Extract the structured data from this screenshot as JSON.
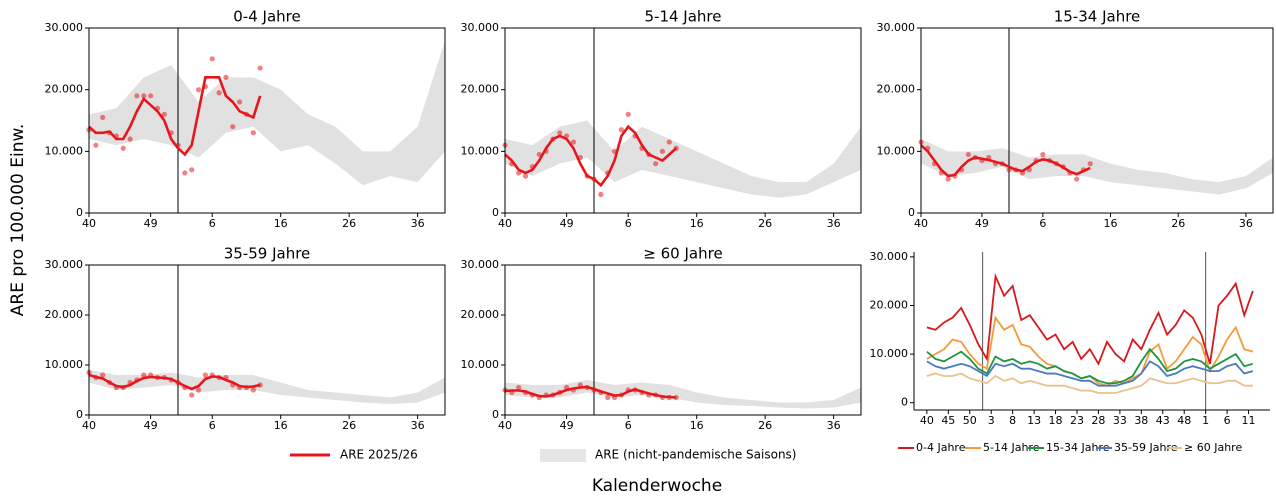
{
  "figure": {
    "ylabel": "ARE pro 100.000 Einw.",
    "xlabel": "Kalenderwoche"
  },
  "legend": {
    "line": {
      "name": "ARE 2025/26",
      "color": "#e8161b"
    },
    "band": {
      "name": "ARE (nicht-pandemische Saisons)",
      "color": "#dcdcdc"
    }
  },
  "chart_data": [
    {
      "type": "band_line",
      "title": "0-4 Jahre",
      "x": [
        0,
        1,
        2,
        3,
        4,
        5,
        6,
        7,
        8,
        9,
        10,
        11,
        12,
        13,
        14,
        15,
        16,
        17,
        18,
        19,
        20,
        21,
        22,
        23,
        24,
        25
      ],
      "values": [
        14000,
        13000,
        13000,
        13200,
        12000,
        12000,
        14000,
        16500,
        18500,
        17500,
        16500,
        15000,
        12000,
        10500,
        9500,
        11000,
        16500,
        22000,
        22000,
        22000,
        19000,
        18000,
        16500,
        16000,
        15500,
        19000
      ],
      "points": [
        13500,
        11000,
        15500,
        13000,
        12500,
        10500,
        12000,
        19000,
        19000,
        19000,
        17000,
        16000,
        13000,
        11000,
        6500,
        7000,
        20000,
        20500,
        25000,
        19500,
        22000,
        14000,
        18000,
        16000,
        13000,
        23500
      ],
      "band_x": [
        0,
        4,
        8,
        12,
        16,
        20,
        24,
        28,
        32,
        36,
        40,
        44,
        48,
        52
      ],
      "band_lower": [
        12000,
        11000,
        12000,
        11000,
        9000,
        13000,
        14000,
        10000,
        11000,
        8000,
        4500,
        6000,
        5000,
        10000
      ],
      "band_upper": [
        16000,
        17000,
        22000,
        24000,
        18000,
        22000,
        22000,
        20000,
        16000,
        14000,
        10000,
        10000,
        14000,
        28000
      ],
      "vline": 13,
      "xlim": [
        0,
        52
      ],
      "xticks": [
        {
          "value": 0,
          "label": "40"
        },
        {
          "value": 9,
          "label": "49"
        },
        {
          "value": 18,
          "label": "6"
        },
        {
          "value": 28,
          "label": "16"
        },
        {
          "value": 38,
          "label": "26"
        },
        {
          "value": 48,
          "label": "36"
        }
      ],
      "ylim": [
        0,
        30000
      ],
      "yticks": [
        0,
        {
          "value": 10000,
          "label": "10.000"
        },
        {
          "value": 20000,
          "label": "20.000"
        },
        {
          "value": 30000,
          "label": "30.000"
        }
      ]
    },
    {
      "type": "band_line",
      "title": "5-14 Jahre",
      "x": [
        0,
        1,
        2,
        3,
        4,
        5,
        6,
        7,
        8,
        9,
        10,
        11,
        12,
        13,
        14,
        15,
        16,
        17,
        18,
        19,
        20,
        21,
        22,
        23,
        24,
        25
      ],
      "values": [
        9500,
        8500,
        7000,
        6500,
        7000,
        8500,
        10500,
        12000,
        12500,
        12000,
        10500,
        8000,
        6000,
        5500,
        4500,
        6000,
        8500,
        12500,
        14000,
        13000,
        11000,
        9500,
        9000,
        8500,
        9500,
        10500
      ],
      "points": [
        11000,
        8000,
        6500,
        6000,
        7500,
        9500,
        10000,
        12000,
        13000,
        12500,
        11500,
        9000,
        6000,
        5500,
        3000,
        6500,
        10000,
        13500,
        16000,
        12500,
        10500,
        9500,
        8000,
        10000,
        11500,
        10500
      ],
      "band_x": [
        0,
        4,
        8,
        12,
        16,
        20,
        24,
        28,
        32,
        36,
        40,
        44,
        48,
        52
      ],
      "band_lower": [
        8000,
        6000,
        8000,
        9000,
        5000,
        7000,
        6000,
        5000,
        4000,
        3000,
        2500,
        3000,
        5000,
        7000
      ],
      "band_upper": [
        12000,
        11000,
        14000,
        15000,
        10000,
        14000,
        12000,
        10000,
        8000,
        6000,
        5000,
        5000,
        8000,
        14000
      ],
      "vline": 13,
      "xlim": [
        0,
        52
      ],
      "xticks": [
        {
          "value": 0,
          "label": "40"
        },
        {
          "value": 9,
          "label": "49"
        },
        {
          "value": 18,
          "label": "6"
        },
        {
          "value": 28,
          "label": "16"
        },
        {
          "value": 38,
          "label": "26"
        },
        {
          "value": 48,
          "label": "36"
        }
      ],
      "ylim": [
        0,
        30000
      ],
      "yticks": [
        0,
        {
          "value": 10000,
          "label": "10.000"
        },
        {
          "value": 20000,
          "label": "20.000"
        },
        {
          "value": 30000,
          "label": "30.000"
        }
      ]
    },
    {
      "type": "band_line",
      "title": "15-34 Jahre",
      "x": [
        0,
        1,
        2,
        3,
        4,
        5,
        6,
        7,
        8,
        9,
        10,
        11,
        12,
        13,
        14,
        15,
        16,
        17,
        18,
        19,
        20,
        21,
        22,
        23,
        24,
        25
      ],
      "values": [
        11000,
        10000,
        8500,
        7000,
        6000,
        6200,
        7500,
        8500,
        9000,
        8800,
        8600,
        8300,
        8000,
        7500,
        7000,
        6800,
        7500,
        8300,
        8700,
        8500,
        8000,
        7400,
        6700,
        6300,
        6800,
        7300
      ],
      "points": [
        11500,
        10500,
        8000,
        6500,
        5500,
        6000,
        7000,
        9500,
        9000,
        8500,
        9000,
        8000,
        8000,
        7000,
        7000,
        6500,
        7000,
        8500,
        9500,
        8500,
        8000,
        7500,
        6500,
        5500,
        7000,
        8000
      ],
      "band_x": [
        0,
        4,
        8,
        12,
        16,
        20,
        24,
        28,
        32,
        36,
        40,
        44,
        48,
        52
      ],
      "band_lower": [
        8000,
        6000,
        6500,
        7500,
        5500,
        6000,
        6000,
        5000,
        4500,
        4000,
        3500,
        3000,
        4000,
        6500
      ],
      "band_upper": [
        12000,
        10000,
        10000,
        10500,
        9000,
        9500,
        9500,
        8000,
        7000,
        6500,
        5500,
        5000,
        6000,
        9000
      ],
      "vline": 13,
      "xlim": [
        0,
        52
      ],
      "xticks": [
        {
          "value": 0,
          "label": "40"
        },
        {
          "value": 9,
          "label": "49"
        },
        {
          "value": 18,
          "label": "6"
        },
        {
          "value": 28,
          "label": "16"
        },
        {
          "value": 38,
          "label": "26"
        },
        {
          "value": 48,
          "label": "36"
        }
      ],
      "ylim": [
        0,
        30000
      ],
      "yticks": [
        0,
        {
          "value": 10000,
          "label": "10.000"
        },
        {
          "value": 20000,
          "label": "20.000"
        },
        {
          "value": 30000,
          "label": "30.000"
        }
      ]
    },
    {
      "type": "band_line",
      "title": "35-59 Jahre",
      "x": [
        0,
        1,
        2,
        3,
        4,
        5,
        6,
        7,
        8,
        9,
        10,
        11,
        12,
        13,
        14,
        15,
        16,
        17,
        18,
        19,
        20,
        21,
        22,
        23,
        24,
        25
      ],
      "values": [
        8000,
        7600,
        7300,
        6500,
        5800,
        5600,
        6000,
        6800,
        7400,
        7600,
        7500,
        7400,
        7200,
        6500,
        5800,
        5200,
        5800,
        7200,
        7700,
        7600,
        7000,
        6500,
        5800,
        5600,
        5700,
        6000
      ],
      "points": [
        8500,
        7500,
        8000,
        6500,
        5500,
        5500,
        6500,
        7000,
        8000,
        8000,
        7500,
        7500,
        7000,
        6500,
        5500,
        4000,
        5000,
        8000,
        8000,
        7500,
        7500,
        6000,
        5500,
        5500,
        5000,
        6000
      ],
      "band_x": [
        0,
        4,
        8,
        12,
        16,
        20,
        24,
        28,
        32,
        36,
        40,
        44,
        48,
        52
      ],
      "band_lower": [
        6500,
        5000,
        5500,
        6000,
        4500,
        5000,
        5000,
        4000,
        3500,
        3000,
        2500,
        2200,
        2500,
        4500
      ],
      "band_upper": [
        9000,
        8000,
        8000,
        8500,
        7500,
        8000,
        8000,
        6500,
        5000,
        4500,
        4000,
        3500,
        4500,
        7500
      ],
      "vline": 13,
      "xlim": [
        0,
        52
      ],
      "xticks": [
        {
          "value": 0,
          "label": "40"
        },
        {
          "value": 9,
          "label": "49"
        },
        {
          "value": 18,
          "label": "6"
        },
        {
          "value": 28,
          "label": "16"
        },
        {
          "value": 38,
          "label": "26"
        },
        {
          "value": 48,
          "label": "36"
        }
      ],
      "ylim": [
        0,
        30000
      ],
      "yticks": [
        0,
        {
          "value": 10000,
          "label": "10.000"
        },
        {
          "value": 20000,
          "label": "20.000"
        },
        {
          "value": 30000,
          "label": "30.000"
        }
      ]
    },
    {
      "type": "band_line",
      "title": "≥ 60 Jahre",
      "x": [
        0,
        1,
        2,
        3,
        4,
        5,
        6,
        7,
        8,
        9,
        10,
        11,
        12,
        13,
        14,
        15,
        16,
        17,
        18,
        19,
        20,
        21,
        22,
        23,
        24,
        25
      ],
      "values": [
        4800,
        4900,
        4900,
        4700,
        4200,
        3800,
        3700,
        4000,
        4500,
        5000,
        5300,
        5500,
        5600,
        5200,
        4700,
        4300,
        3900,
        4000,
        4700,
        5100,
        4700,
        4300,
        4000,
        3700,
        3600,
        3500
      ],
      "points": [
        5000,
        4500,
        5500,
        4500,
        4000,
        3500,
        4000,
        4000,
        4500,
        5500,
        5000,
        6000,
        5500,
        5000,
        4500,
        3500,
        3500,
        4000,
        5000,
        5000,
        4500,
        4000,
        4000,
        3500,
        3500,
        3500
      ],
      "band_x": [
        0,
        4,
        8,
        12,
        16,
        20,
        24,
        28,
        32,
        36,
        40,
        44,
        48,
        52
      ],
      "band_lower": [
        4000,
        3500,
        3500,
        4500,
        3500,
        4000,
        3500,
        2500,
        2000,
        1800,
        1500,
        1300,
        1500,
        2500
      ],
      "band_upper": [
        6500,
        6000,
        6000,
        7000,
        6000,
        6500,
        6000,
        4500,
        3500,
        3000,
        2500,
        2500,
        3000,
        5500
      ],
      "vline": 13,
      "xlim": [
        0,
        52
      ],
      "xticks": [
        {
          "value": 0,
          "label": "40"
        },
        {
          "value": 9,
          "label": "49"
        },
        {
          "value": 18,
          "label": "6"
        },
        {
          "value": 28,
          "label": "16"
        },
        {
          "value": 38,
          "label": "26"
        },
        {
          "value": 48,
          "label": "36"
        }
      ],
      "ylim": [
        0,
        30000
      ],
      "yticks": [
        0,
        {
          "value": 10000,
          "label": "10.000"
        },
        {
          "value": 20000,
          "label": "20.000"
        },
        {
          "value": 30000,
          "label": "30.000"
        }
      ]
    },
    {
      "type": "line",
      "x": [
        0,
        2,
        4,
        6,
        8,
        10,
        12,
        14,
        16,
        18,
        20,
        22,
        24,
        26,
        28,
        30,
        32,
        34,
        36,
        38,
        40,
        42,
        44,
        46,
        48,
        50,
        52,
        54,
        56,
        58,
        60,
        62,
        64,
        66,
        68,
        70,
        72,
        74,
        76
      ],
      "series": [
        {
          "name": "0-4 Jahre",
          "color": "#d7191c",
          "values": [
            15500,
            15000,
            16500,
            17500,
            19500,
            16000,
            12000,
            9000,
            26000,
            22000,
            24000,
            17000,
            18000,
            15500,
            13000,
            14000,
            11000,
            12500,
            9000,
            11000,
            8000,
            12500,
            10000,
            8500,
            13000,
            11000,
            15000,
            18500,
            14000,
            16000,
            19000,
            17500,
            14000,
            8000,
            20000,
            22000,
            24500,
            18000,
            23000
          ]
        },
        {
          "name": "5-14 Jahre",
          "color": "#f39a3a",
          "values": [
            9000,
            10000,
            11000,
            13000,
            12500,
            10000,
            8000,
            7000,
            17500,
            15000,
            16000,
            12000,
            11500,
            9500,
            8000,
            7500,
            6500,
            6000,
            5000,
            5500,
            4000,
            3500,
            4500,
            4000,
            5000,
            6000,
            10500,
            12000,
            7000,
            8500,
            11000,
            13500,
            12000,
            6500,
            9500,
            13000,
            15500,
            11000,
            10500
          ]
        },
        {
          "name": "15-34 Jahre",
          "color": "#1a9641",
          "values": [
            10500,
            9000,
            8500,
            9500,
            10500,
            9000,
            7000,
            6000,
            9500,
            8500,
            9000,
            8000,
            8500,
            8000,
            7000,
            7500,
            6500,
            6000,
            5000,
            5500,
            4500,
            4000,
            4000,
            4500,
            5500,
            8500,
            11000,
            9000,
            6500,
            7000,
            8500,
            9000,
            8500,
            7000,
            8000,
            9000,
            10000,
            7500,
            8000
          ]
        },
        {
          "name": "35-59 Jahre",
          "color": "#4a78c2",
          "values": [
            8500,
            7500,
            7000,
            7500,
            8000,
            7500,
            6500,
            5500,
            8000,
            7500,
            8000,
            7000,
            7000,
            6500,
            6000,
            6000,
            5500,
            5000,
            4500,
            4500,
            3500,
            3500,
            3500,
            4000,
            4500,
            6000,
            8500,
            7500,
            5500,
            6000,
            7000,
            7500,
            7000,
            6500,
            6500,
            7500,
            8000,
            6000,
            6500
          ]
        },
        {
          "name": "≥ 60 Jahre",
          "color": "#e8c28e",
          "values": [
            5500,
            6000,
            5500,
            5500,
            6000,
            5000,
            4500,
            4000,
            5500,
            4500,
            5000,
            4000,
            4500,
            4000,
            3500,
            3500,
            3500,
            3000,
            2500,
            2500,
            2000,
            2000,
            2000,
            2500,
            3000,
            3500,
            5000,
            4500,
            4000,
            4000,
            4500,
            5000,
            4500,
            4000,
            4000,
            4500,
            4500,
            3500,
            3500
          ]
        }
      ],
      "vlines": [
        13,
        65
      ],
      "xlim": [
        -3,
        80
      ],
      "xticks": [
        {
          "value": 0,
          "label": "40"
        },
        {
          "value": 5,
          "label": "45"
        },
        {
          "value": 10,
          "label": "50"
        },
        {
          "value": 15,
          "label": "3"
        },
        {
          "value": 20,
          "label": "8"
        },
        {
          "value": 25,
          "label": "13"
        },
        {
          "value": 30,
          "label": "18"
        },
        {
          "value": 35,
          "label": "23"
        },
        {
          "value": 40,
          "label": "28"
        },
        {
          "value": 45,
          "label": "33"
        },
        {
          "value": 50,
          "label": "38"
        },
        {
          "value": 55,
          "label": "43"
        },
        {
          "value": 60,
          "label": "48"
        },
        {
          "value": 65,
          "label": "1"
        },
        {
          "value": 70,
          "label": "6"
        },
        {
          "value": 75,
          "label": "11"
        }
      ],
      "ylim": [
        -1500,
        31000
      ],
      "yticks": [
        0,
        {
          "value": 10000,
          "label": "10.000"
        },
        {
          "value": 20000,
          "label": "20.000"
        },
        {
          "value": 30000,
          "label": "30.000"
        }
      ]
    }
  ]
}
